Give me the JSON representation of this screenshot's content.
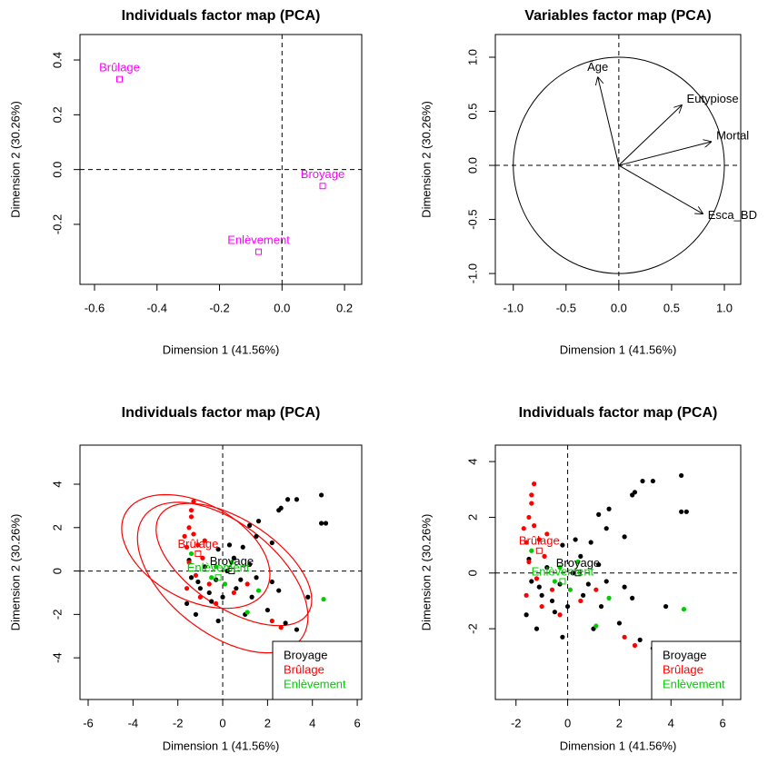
{
  "chart_data": [
    {
      "type": "scatter",
      "title": "Individuals factor map (PCA)",
      "xlabel": "Dimension 1 (41.56%)",
      "ylabel": "Dimension 2 (30.26%)",
      "xlim": [
        -0.6465,
        0.255
      ],
      "ylim": [
        -0.419,
        0.493
      ],
      "xticks": [
        -0.6,
        -0.4,
        -0.2,
        {
          "value": 0,
          "label": "0.0"
        },
        0.2
      ],
      "yticks": [
        -0.2,
        {
          "value": 0,
          "label": "0.0"
        },
        0.2,
        0.4
      ],
      "series": [
        {
          "color": "#ff00ff",
          "marker": "square",
          "x": [
            -0.52,
            0.13,
            -0.075
          ],
          "values": [
            0.33,
            -0.06,
            -0.3
          ],
          "labels": [
            "Brûlage",
            "Broyage",
            "Enlèvement"
          ]
        }
      ]
    },
    {
      "type": "vector",
      "title": "Variables factor map (PCA)",
      "xlabel": "Dimension 1 (41.56%)",
      "ylabel": "Dimension 2 (30.26%)",
      "xlim": [
        -1.17,
        1.155
      ],
      "ylim": [
        -1.1,
        1.21
      ],
      "xticks": [
        {
          "value": -1,
          "label": "-1.0"
        },
        -0.5,
        {
          "value": 0,
          "label": "0.0"
        },
        0.5,
        {
          "value": 1,
          "label": "1.0"
        }
      ],
      "yticks": [
        {
          "value": -1,
          "label": "-1.0"
        },
        -0.5,
        {
          "value": 0,
          "label": "0.0"
        },
        0.5,
        {
          "value": 1,
          "label": "1.0"
        }
      ],
      "x": [
        -0.2,
        0.6,
        0.88,
        0.8
      ],
      "values": [
        0.82,
        0.56,
        0.22,
        -0.45
      ],
      "labels": [
        "Âge",
        "Eutypiose",
        "Mortal",
        "Esca_BD"
      ]
    },
    {
      "type": "scatter",
      "title": "Individuals factor map (PCA)",
      "xlabel": "Dimension 1 (41.56%)",
      "ylabel": "Dimension 2 (30.26%)",
      "xlim": [
        -6.365,
        6.2
      ],
      "ylim": [
        -5.92,
        5.8
      ],
      "xticks": [
        -6,
        -4,
        -2,
        0,
        2,
        4,
        6
      ],
      "yticks": [
        -4,
        -2,
        0,
        2,
        4
      ],
      "legend": "bottomright",
      "series": [
        {
          "name": "Broyage",
          "color": "#000000",
          "x": [
            4.4,
            4.6,
            4.4,
            3.3,
            2.9,
            2.5,
            2.6,
            1.6,
            1.2,
            2.2,
            1.5,
            0.9,
            0.3,
            -0.2,
            0.5,
            1.2,
            1.5,
            2.2,
            3.3,
            2.8,
            2.0,
            1.3,
            0.6,
            0.0,
            -0.5,
            -1.0,
            -1.4,
            -1.6,
            -1.2,
            -0.3,
            0.2,
            -0.8,
            -1.1,
            0.8,
            -0.6,
            1.0,
            2.5,
            -1.5,
            -0.2,
            3.8
          ],
          "values": [
            3.5,
            2.2,
            2.2,
            3.3,
            3.3,
            2.8,
            2.9,
            2.3,
            2.1,
            1.3,
            1.6,
            1.1,
            1.2,
            1.0,
            0.6,
            0.3,
            -0.3,
            -0.5,
            -2.7,
            -2.4,
            -1.8,
            -1.2,
            -0.8,
            -1.2,
            -1.4,
            -0.8,
            -0.3,
            -1.5,
            -2.0,
            -0.4,
            0.0,
            0.2,
            -0.5,
            -0.4,
            -1.0,
            -2.0,
            -0.9,
            0.5,
            -2.3,
            -1.2
          ]
        },
        {
          "name": "Brûlage",
          "color": "#ff0000",
          "x": [
            -1.3,
            -1.4,
            -1.5,
            -1.7,
            -1.6,
            -1.3,
            -1.1,
            -1.5,
            -1.2,
            -0.9,
            -0.6,
            -1.0,
            -0.3,
            0.5,
            2.2,
            2.6,
            -1.4,
            -0.8,
            1.1,
            -1.6
          ],
          "values": [
            3.2,
            2.8,
            2.0,
            1.6,
            1.1,
            1.7,
            1.2,
            0.4,
            -0.2,
            0.6,
            -0.6,
            -1.2,
            -1.5,
            -1.0,
            -2.3,
            -2.6,
            2.5,
            1.4,
            -0.6,
            -0.8
          ]
        },
        {
          "name": "Enlèvement",
          "color": "#00cc00",
          "x": [
            4.5,
            1.6,
            1.1,
            -0.3,
            -0.5,
            0.1,
            -1.4,
            0.4
          ],
          "values": [
            -1.3,
            -0.9,
            -1.9,
            0.2,
            -0.3,
            -0.6,
            0.8,
            0.4
          ]
        }
      ],
      "centroids": {
        "x": [
          -1.1,
          0.4,
          -0.2
        ],
        "values": [
          0.8,
          0.0,
          -0.3
        ],
        "labels": [
          "Brûlage",
          "Broyage",
          "Enlèvement"
        ],
        "colors": [
          "#ff0000",
          "#000000",
          "#00cc00"
        ]
      },
      "ellipses": [
        {
          "color": "#ff0000",
          "center": [
            -1.2,
            0.9
          ],
          "semi_axes": [
            3.6,
            2.2
          ],
          "angle": -30
        },
        {
          "color": "#ff0000",
          "center": [
            0.5,
            0.3
          ],
          "semi_axes": [
            4.0,
            2.0
          ],
          "angle": -35
        },
        {
          "color": "#ff0000",
          "center": [
            0,
            -0.3
          ],
          "semi_axes": [
            4.5,
            2.5
          ],
          "angle": -40
        }
      ]
    },
    {
      "type": "scatter",
      "title": "Individuals factor map (PCA)",
      "xlabel": "Dimension 1 (41.56%)",
      "ylabel": "Dimension 2 (30.26%)",
      "xlim": [
        -2.8,
        6.7
      ],
      "ylim": [
        -4.54,
        4.59
      ],
      "xticks": [
        -2,
        0,
        2,
        4,
        6
      ],
      "yticks": [
        -2,
        0,
        2,
        4
      ],
      "legend": "bottomright",
      "series": [
        {
          "name": "Broyage",
          "color": "#000000",
          "x": [
            4.4,
            4.6,
            4.4,
            3.3,
            2.9,
            2.5,
            2.6,
            1.6,
            1.2,
            2.2,
            1.5,
            0.9,
            0.3,
            -0.2,
            0.5,
            1.2,
            1.5,
            2.2,
            3.3,
            2.8,
            2.0,
            1.3,
            0.6,
            0.0,
            -0.5,
            -1.0,
            -1.4,
            -1.6,
            -1.2,
            -0.3,
            0.2,
            -0.8,
            -1.1,
            0.8,
            -0.6,
            1.0,
            2.5,
            -1.5,
            -0.2,
            3.8
          ],
          "values": [
            3.5,
            2.2,
            2.2,
            3.3,
            3.3,
            2.8,
            2.9,
            2.3,
            2.1,
            1.3,
            1.6,
            1.1,
            1.2,
            1.0,
            0.6,
            0.3,
            -0.3,
            -0.5,
            -2.7,
            -2.4,
            -1.8,
            -1.2,
            -0.8,
            -1.2,
            -1.4,
            -0.8,
            -0.3,
            -1.5,
            -2.0,
            -0.4,
            0.0,
            0.2,
            -0.5,
            -0.4,
            -1.0,
            -2.0,
            -0.9,
            0.5,
            -2.3,
            -1.2
          ]
        },
        {
          "name": "Brûlage",
          "color": "#ff0000",
          "x": [
            -1.3,
            -1.4,
            -1.5,
            -1.7,
            -1.6,
            -1.3,
            -1.1,
            -1.5,
            -1.2,
            -0.9,
            -0.6,
            -1.0,
            -0.3,
            0.5,
            2.2,
            2.6,
            -1.4,
            -0.8,
            1.1,
            -1.6
          ],
          "values": [
            3.2,
            2.8,
            2.0,
            1.6,
            1.1,
            1.7,
            1.2,
            0.4,
            -0.2,
            0.6,
            -0.6,
            -1.2,
            -1.5,
            -1.0,
            -2.3,
            -2.6,
            2.5,
            1.4,
            -0.6,
            -0.8
          ]
        },
        {
          "name": "Enlèvement",
          "color": "#00cc00",
          "x": [
            4.5,
            1.6,
            1.1,
            -0.3,
            -0.5,
            0.1,
            -1.4,
            0.4
          ],
          "values": [
            -1.3,
            -0.9,
            -1.9,
            0.2,
            -0.3,
            -0.6,
            0.8,
            0.4
          ]
        }
      ],
      "centroids": {
        "x": [
          -1.1,
          0.4,
          -0.2
        ],
        "values": [
          0.8,
          0.0,
          -0.3
        ],
        "labels": [
          "Brûlage",
          "Broyage",
          "Enlèvement"
        ],
        "colors": [
          "#ff0000",
          "#000000",
          "#00cc00"
        ]
      }
    }
  ]
}
